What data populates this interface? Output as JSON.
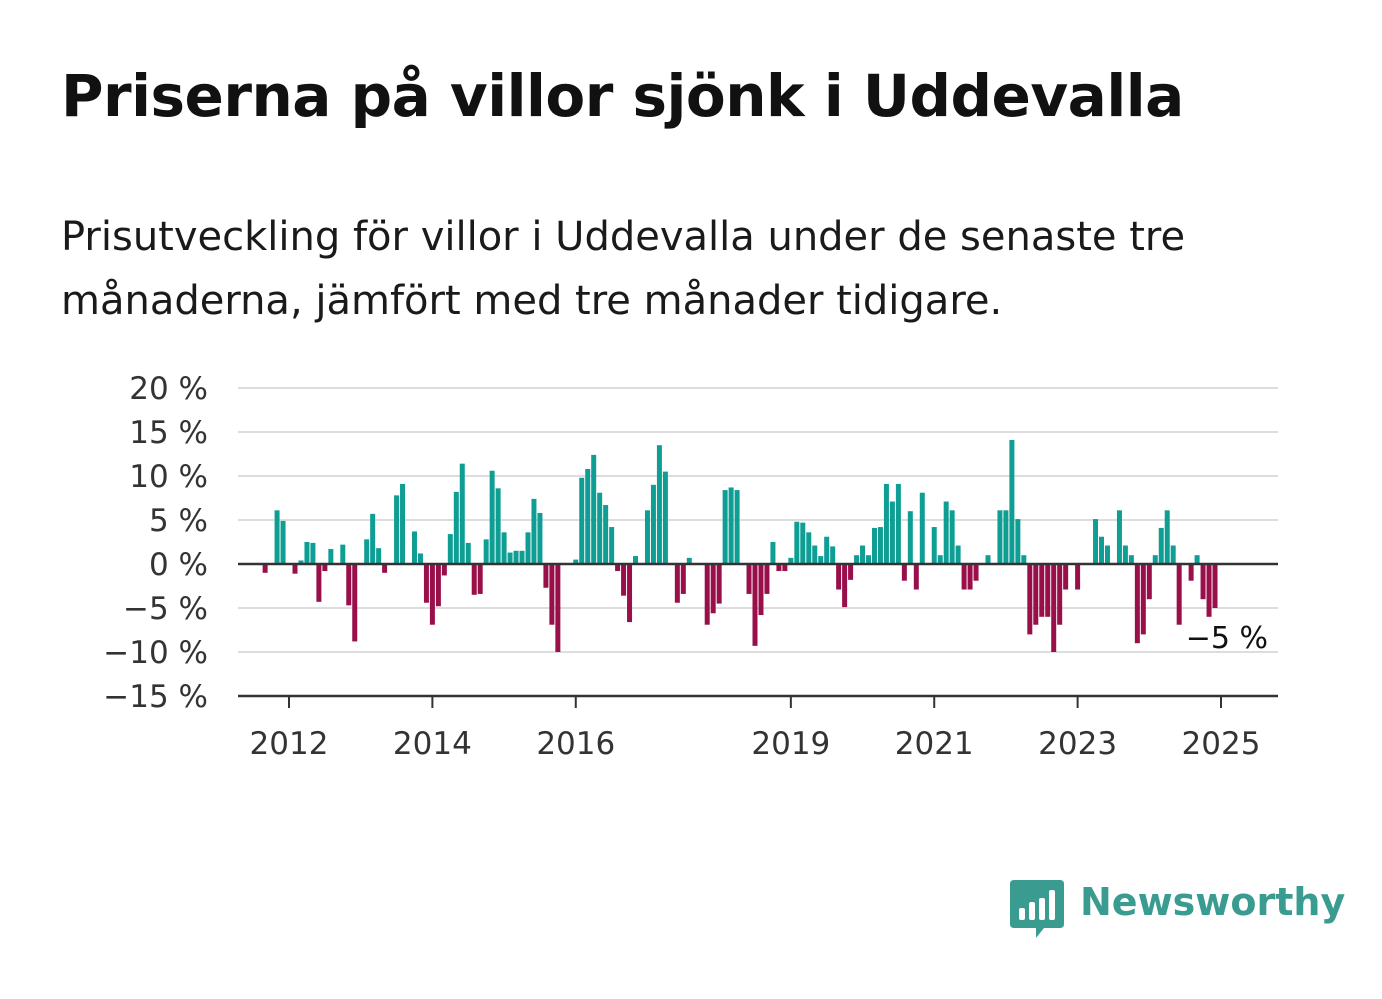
{
  "title": "Priserna på villor sjönk i Uddevalla",
  "subtitle": "Prisutveckling för villor i Uddevalla under de senaste tre månaderna, jämfört med tre månader tidigare.",
  "brand": {
    "name": "Newsworthy",
    "color": "#3a9c90",
    "icon": "bar-chart-speech-bubble-icon"
  },
  "colors": {
    "positive": "#0f9e94",
    "negative": "#990f4a",
    "grid": "#dddddd",
    "axis": "#333333"
  },
  "chart_data": {
    "type": "bar",
    "title": "",
    "xlabel": "",
    "ylabel": "",
    "ylim": [
      -15,
      20
    ],
    "yticks": [
      -15,
      -10,
      -5,
      0,
      5,
      10,
      15,
      20
    ],
    "ytick_labels": [
      "−15 %",
      "−10 %",
      "−5 %",
      "0 %",
      "5 %",
      "10 %",
      "15 %",
      "20 %"
    ],
    "xticks": [
      2012,
      2014,
      2016,
      2019,
      2021,
      2023,
      2025
    ],
    "xtick_labels": [
      "2012",
      "2014",
      "2016",
      "2019",
      "2021",
      "2023",
      "2025"
    ],
    "x_start": 2011.667,
    "x_step": 0.08333,
    "annotation": {
      "text": "−5 %"
    },
    "values": [
      -1,
      0,
      6.1,
      4.9,
      0,
      -1.1,
      0.4,
      2.5,
      2.4,
      -4.3,
      -0.8,
      1.7,
      0,
      2.2,
      -4.7,
      -8.8,
      0,
      2.8,
      5.7,
      1.8,
      -1,
      0,
      7.8,
      9.1,
      0,
      3.7,
      1.2,
      -4.4,
      -6.9,
      -4.8,
      -1.3,
      3.4,
      8.2,
      11.4,
      2.4,
      -3.5,
      -3.4,
      2.8,
      10.6,
      8.6,
      3.6,
      1.3,
      1.5,
      1.5,
      3.6,
      7.4,
      5.8,
      -2.7,
      -6.9,
      -10,
      0,
      0,
      0.5,
      9.8,
      10.8,
      12.4,
      8.1,
      6.7,
      4.2,
      -0.8,
      -3.6,
      -6.6,
      0.9,
      0,
      6.1,
      9,
      13.5,
      10.5,
      0,
      -4.4,
      -3.4,
      0.7,
      0,
      0,
      -6.9,
      -5.6,
      -4.5,
      8.4,
      8.7,
      8.4,
      0,
      -3.4,
      -9.3,
      -5.8,
      -3.4,
      2.5,
      -0.8,
      -0.8,
      0.7,
      4.8,
      4.7,
      3.6,
      2.1,
      0.9,
      3.1,
      2,
      -2.9,
      -4.9,
      -1.8,
      1,
      2.1,
      1,
      4.1,
      4.2,
      9.1,
      7.1,
      9.1,
      -1.9,
      6,
      -2.9,
      8.1,
      0,
      4.2,
      1,
      7.1,
      6.1,
      2.1,
      -2.9,
      -2.9,
      -1.9,
      0,
      1,
      0,
      6.1,
      6.1,
      14.1,
      5.1,
      1,
      -8,
      -6.9,
      -6,
      -6,
      -10,
      -6.9,
      -2.9,
      0,
      -2.9,
      0,
      0,
      5.1,
      3.1,
      2.1,
      0,
      6.1,
      2.1,
      1,
      -9,
      -8,
      -4,
      1,
      4.1,
      6.1,
      2.1,
      -6.9,
      0,
      -1.9,
      1,
      -4,
      -6,
      -5
    ]
  }
}
